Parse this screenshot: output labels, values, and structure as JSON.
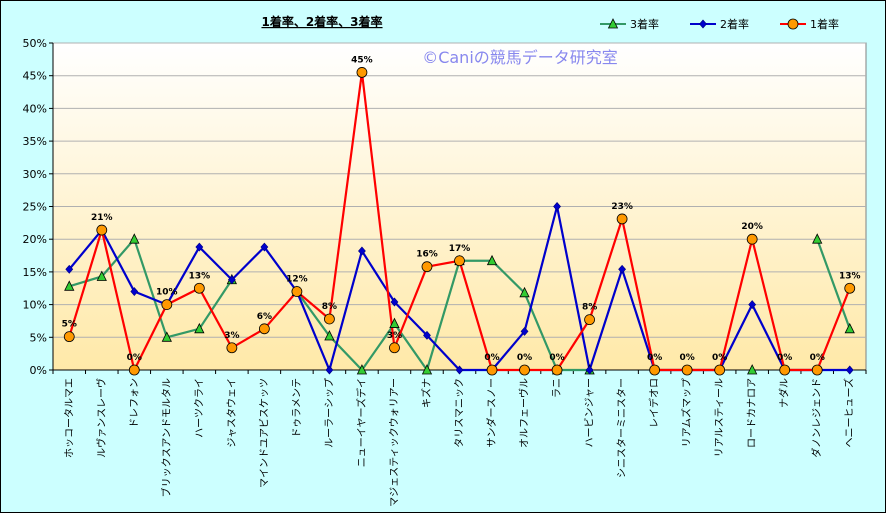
{
  "chart_data": {
    "type": "line",
    "title": "1着率、2着率、3着率",
    "credit": "©Caniの競馬データ研究室",
    "ylim": [
      0,
      0.5
    ],
    "yticks": [
      "0%",
      "5%",
      "10%",
      "15%",
      "20%",
      "25%",
      "30%",
      "35%",
      "40%",
      "45%",
      "50%"
    ],
    "grid": true,
    "legend_position": "top-right",
    "categories": [
      "ホッコータルマエ",
      "ルヴァンスレーヴ",
      "ドレフォン",
      "ブリックスアンドモルタル",
      "ハーツクライ",
      "ジャスタウェイ",
      "マインドユアビスケッツ",
      "ドゥラメンテ",
      "ルーラーシップ",
      "ニューイヤーズデイ",
      "マジェスティックウォリアー",
      "キズナ",
      "タリスマニック",
      "サンダースノー",
      "オルフェーヴル",
      "ラニ",
      "ハービンジャー",
      "シニスターミニスター",
      "レイデオロ",
      "リアムズマップ",
      "リアルスティール",
      "ロードカナロア",
      "ナダル",
      "ダノンレジェンド",
      "ヘニーヒューズ"
    ],
    "series": [
      {
        "name": "3着率",
        "color": "#339966",
        "marker": "triangle",
        "marker_fill": "#33cc33",
        "values": [
          0.128,
          0.143,
          0.2,
          0.05,
          0.063,
          0.138,
          null,
          0.12,
          0.052,
          0.0,
          0.071,
          0.0,
          0.167,
          0.167,
          0.118,
          0.0,
          0.0,
          null,
          null,
          null,
          null,
          0.0,
          null,
          0.2,
          0.063
        ]
      },
      {
        "name": "2着率",
        "color": "#0000cc",
        "marker": "diamond",
        "marker_fill": "#0000cc",
        "values": [
          0.154,
          0.214,
          0.12,
          0.1,
          0.188,
          0.138,
          0.188,
          0.12,
          0.0,
          0.182,
          0.104,
          0.053,
          0.0,
          0.0,
          0.059,
          0.25,
          0.0,
          0.154,
          0.0,
          0.0,
          0.0,
          0.1,
          0.0,
          0.0,
          0.0
        ]
      },
      {
        "name": "1着率",
        "color": "#ff0000",
        "marker": "circle",
        "marker_fill": "#ff9900",
        "values": [
          0.051,
          0.214,
          0.0,
          0.1,
          0.125,
          0.034,
          0.063,
          0.12,
          0.078,
          0.455,
          0.034,
          0.158,
          0.167,
          0.0,
          0.0,
          0.0,
          0.077,
          0.231,
          0.0,
          0.0,
          0.0,
          0.2,
          0.0,
          0.0,
          0.125
        ]
      }
    ],
    "data_labels": [
      "5%",
      "21%",
      "0%",
      "10%",
      "13%",
      "3%",
      "6%",
      "12%",
      "8%",
      "45%",
      "3%",
      "16%",
      "17%",
      "0%",
      "0%",
      "0%",
      "8%",
      "23%",
      "0%",
      "0%",
      "0%",
      "20%",
      "0%",
      "0%",
      "13%"
    ]
  }
}
